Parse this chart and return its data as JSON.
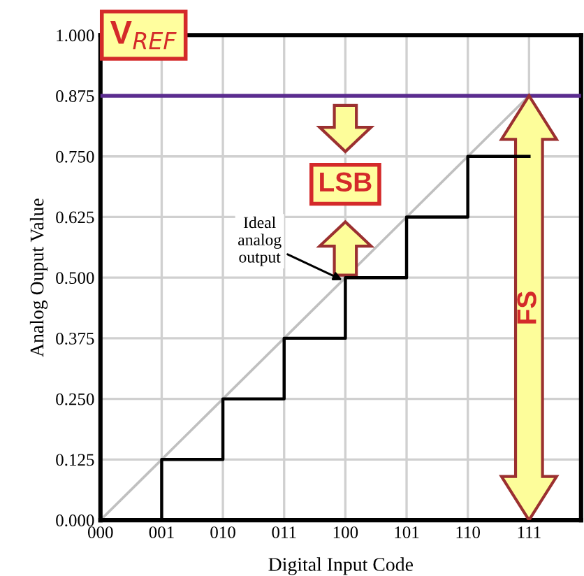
{
  "chart_data": {
    "type": "line",
    "xlabel": "Digital Input Code",
    "ylabel": "Analog Ouput Value",
    "categories": [
      "000",
      "001",
      "010",
      "011",
      "100",
      "101",
      "110",
      "111"
    ],
    "series": [
      {
        "color": "#c0c0c0",
        "x": [
          "000",
          "001",
          "010",
          "011",
          "100",
          "101",
          "110",
          "111"
        ],
        "values": [
          0,
          0.125,
          0.25,
          0.375,
          0.5,
          0.625,
          0.75,
          0.875
        ]
      },
      {
        "type": "step",
        "color": "#000000",
        "x": [
          "001",
          "001",
          "010",
          "011",
          "100",
          "101",
          "110",
          "111"
        ],
        "values": [
          0,
          0.125,
          0.25,
          0.375,
          0.5,
          0.625,
          0.75,
          0.75
        ]
      }
    ],
    "ylim": [
      0,
      1
    ],
    "yticks": [
      {
        "value": 0,
        "label": "0.000"
      },
      {
        "value": 0.125,
        "label": "0.125"
      },
      {
        "value": 0.25,
        "label": "0.250"
      },
      {
        "value": 0.375,
        "label": "0.375"
      },
      {
        "value": 0.5,
        "label": "0.500"
      },
      {
        "value": 0.625,
        "label": "0.625"
      },
      {
        "value": 0.75,
        "label": "0.750"
      },
      {
        "value": 0.875,
        "label": "0.875"
      },
      {
        "value": 1,
        "label": "1.000"
      }
    ],
    "ref_lines": [
      {
        "axis": "y",
        "value": 0.875,
        "label": "V$_{REF}$",
        "color": "#5b2c8f"
      }
    ],
    "annotations": [
      {
        "text": "Ideal\nanalog\noutput",
        "x": "100",
        "y": 0.5
      },
      "LSB",
      "FS"
    ],
    "grid": true
  }
}
